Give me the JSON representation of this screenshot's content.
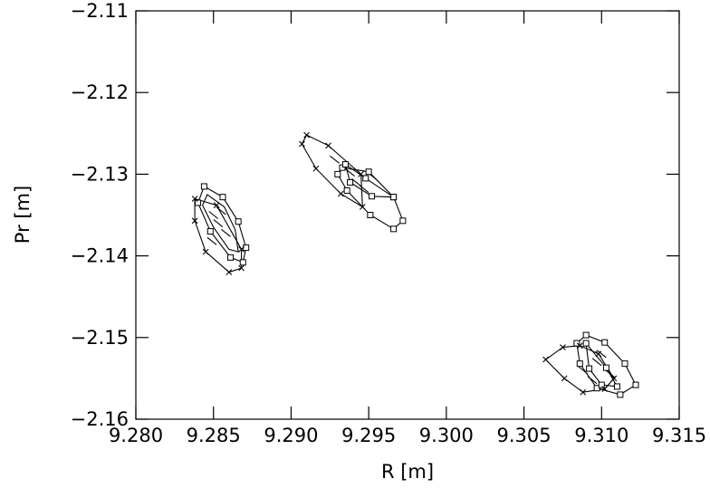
{
  "chart_data": {
    "type": "scatter",
    "title": "",
    "xlabel": "R [m]",
    "ylabel": "Pr [m]",
    "xlim": [
      9.28,
      9.315
    ],
    "ylim": [
      -2.16,
      -2.11
    ],
    "grid": false,
    "legend": "none",
    "x_ticks": [
      9.28,
      9.285,
      9.29,
      9.295,
      9.3,
      9.305,
      9.31,
      9.315
    ],
    "x_tick_labels": [
      "9.280",
      "9.285",
      "9.290",
      "9.295",
      "9.300",
      "9.305",
      "9.310",
      "9.315"
    ],
    "y_ticks": [
      -2.11,
      -2.12,
      -2.13,
      -2.14,
      -2.15,
      -2.16
    ],
    "y_tick_labels": [
      "−2.11",
      "−2.12",
      "−2.13",
      "−2.14",
      "−2.15",
      "−2.16"
    ],
    "islands": [
      {
        "center": [
          9.2854,
          -2.1365
        ],
        "orbits": [
          {
            "closed": true,
            "marker": "square",
            "points": [
              [
                9.2844,
                -2.1315
              ],
              [
                9.2856,
                -2.1328
              ],
              [
                9.2866,
                -2.1358
              ],
              [
                9.2871,
                -2.139
              ],
              [
                9.2869,
                -2.1408
              ],
              [
                9.2861,
                -2.1402
              ],
              [
                9.2848,
                -2.137
              ],
              [
                9.284,
                -2.1335
              ]
            ]
          },
          {
            "closed": true,
            "marker": "none",
            "points": [
              [
                9.2846,
                -2.1325
              ],
              [
                9.2857,
                -2.134
              ],
              [
                9.2864,
                -2.1368
              ],
              [
                9.2866,
                -2.1395
              ],
              [
                9.286,
                -2.1392
              ],
              [
                9.285,
                -2.1365
              ],
              [
                9.2843,
                -2.1338
              ]
            ]
          },
          {
            "closed": true,
            "marker": "cross",
            "points": [
              [
                9.2838,
                -2.133
              ],
              [
                9.2852,
                -2.1338
              ],
              [
                9.2868,
                -2.1392
              ],
              [
                9.2868,
                -2.1415
              ],
              [
                9.286,
                -2.142
              ],
              [
                9.2845,
                -2.1395
              ],
              [
                9.2838,
                -2.1357
              ]
            ]
          }
        ],
        "dashes": [
          [
            9.2853,
            -2.136
          ],
          [
            9.2855,
            -2.1345
          ],
          [
            9.285,
            -2.135
          ],
          [
            9.2858,
            -2.1372
          ],
          [
            9.2849,
            -2.1382
          ]
        ]
      },
      {
        "center": [
          9.2945,
          -2.131
        ],
        "orbits": [
          {
            "closed": true,
            "marker": "square",
            "points": [
              [
                9.2933,
                -2.1292
              ],
              [
                9.295,
                -2.1297
              ],
              [
                9.2966,
                -2.1328
              ],
              [
                9.2972,
                -2.1357
              ],
              [
                9.2966,
                -2.1367
              ],
              [
                9.2951,
                -2.135
              ],
              [
                9.2936,
                -2.132
              ],
              [
                9.293,
                -2.13
              ]
            ]
          },
          {
            "closed": true,
            "marker": "square",
            "points": [
              [
                9.2935,
                -2.1288
              ],
              [
                9.2948,
                -2.1305
              ],
              [
                9.2966,
                -2.1328
              ],
              [
                9.2952,
                -2.1327
              ],
              [
                9.2938,
                -2.131
              ]
            ]
          },
          {
            "closed": true,
            "marker": "cross",
            "points": [
              [
                9.291,
                -2.1252
              ],
              [
                9.2924,
                -2.1265
              ],
              [
                9.2945,
                -2.13
              ],
              [
                9.2946,
                -2.134
              ],
              [
                9.2932,
                -2.1324
              ],
              [
                9.2916,
                -2.1293
              ],
              [
                9.2907,
                -2.1263
              ]
            ]
          }
        ],
        "dashes": [
          [
            9.2942,
            -2.131
          ],
          [
            9.2938,
            -2.1298
          ],
          [
            9.2947,
            -2.1318
          ],
          [
            9.2952,
            -2.1302
          ],
          [
            9.2928,
            -2.1282
          ]
        ]
      },
      {
        "center": [
          9.3093,
          -2.1535
        ],
        "orbits": [
          {
            "closed": true,
            "marker": "square",
            "points": [
              [
                9.309,
                -2.1497
              ],
              [
                9.3102,
                -2.1506
              ],
              [
                9.3115,
                -2.1532
              ],
              [
                9.3122,
                -2.1558
              ],
              [
                9.3112,
                -2.157
              ],
              [
                9.3097,
                -2.1562
              ],
              [
                9.3086,
                -2.1532
              ],
              [
                9.3084,
                -2.1507
              ]
            ]
          },
          {
            "closed": true,
            "marker": "square",
            "points": [
              [
                9.309,
                -2.1507
              ],
              [
                9.3103,
                -2.1537
              ],
              [
                9.311,
                -2.156
              ],
              [
                9.31,
                -2.1558
              ],
              [
                9.3092,
                -2.1538
              ]
            ]
          },
          {
            "closed": true,
            "marker": "cross",
            "points": [
              [
                9.3075,
                -2.1512
              ],
              [
                9.3086,
                -2.151
              ],
              [
                9.3098,
                -2.152
              ],
              [
                9.3108,
                -2.155
              ],
              [
                9.3102,
                -2.1563
              ],
              [
                9.3088,
                -2.1567
              ],
              [
                9.3076,
                -2.155
              ],
              [
                9.3064,
                -2.1527
              ]
            ]
          }
        ],
        "dashes": [
          [
            9.3097,
            -2.153
          ],
          [
            9.31,
            -2.152
          ],
          [
            9.3106,
            -2.1545
          ],
          [
            9.3094,
            -2.1552
          ],
          [
            9.3088,
            -2.154
          ]
        ]
      }
    ]
  }
}
